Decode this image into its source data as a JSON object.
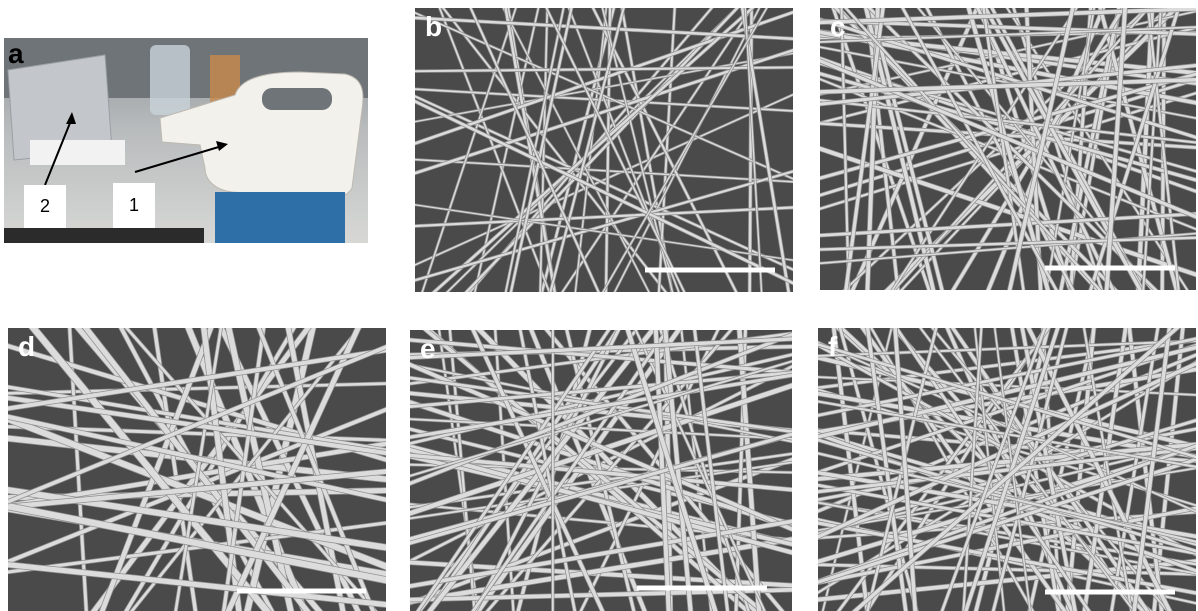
{
  "panels": [
    {
      "label": "a",
      "callouts": [
        "1",
        "2"
      ]
    },
    {
      "label": "b"
    },
    {
      "label": "c"
    },
    {
      "label": "d"
    },
    {
      "label": "e"
    },
    {
      "label": "f"
    }
  ]
}
